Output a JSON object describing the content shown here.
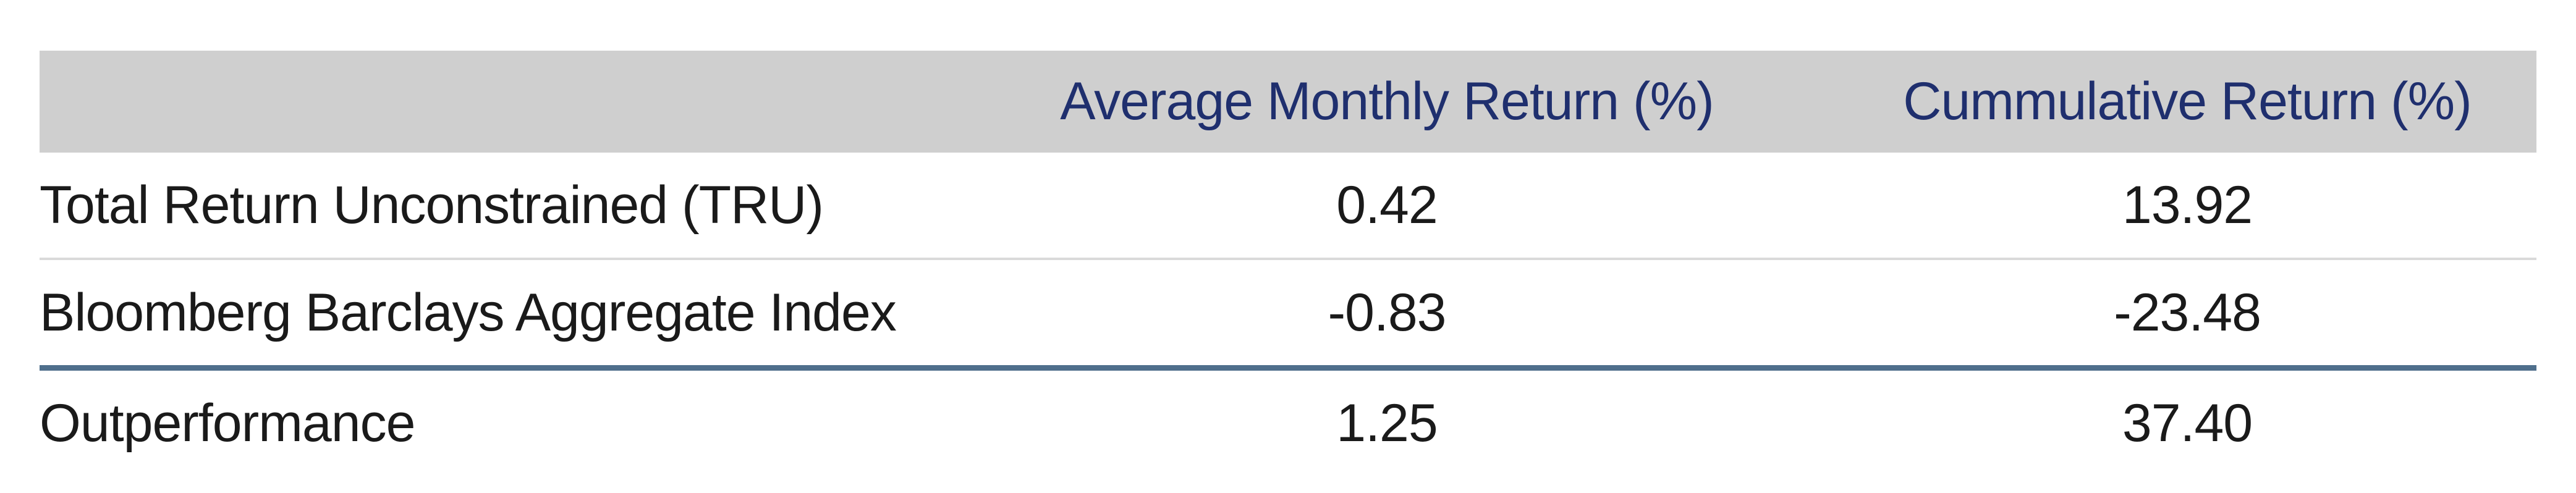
{
  "table": {
    "headers": [
      "",
      "Average Monthly Return (%)",
      "Cummulative Return (%)"
    ],
    "rows": [
      {
        "label": "Total Return Unconstrained (TRU)",
        "avg_monthly": "0.42",
        "cumulative": "13.92"
      },
      {
        "label": "Bloomberg Barclays Aggregate Index",
        "avg_monthly": "-0.83",
        "cumulative": "-23.48"
      },
      {
        "label": "Outperformance",
        "avg_monthly": "1.25",
        "cumulative": "37.40"
      }
    ]
  },
  "colors": {
    "header_bg": "#cfcfcf",
    "header_text": "#1f2f6e",
    "rule_thin": "#dadada",
    "rule_thick": "#4f6f8c"
  }
}
